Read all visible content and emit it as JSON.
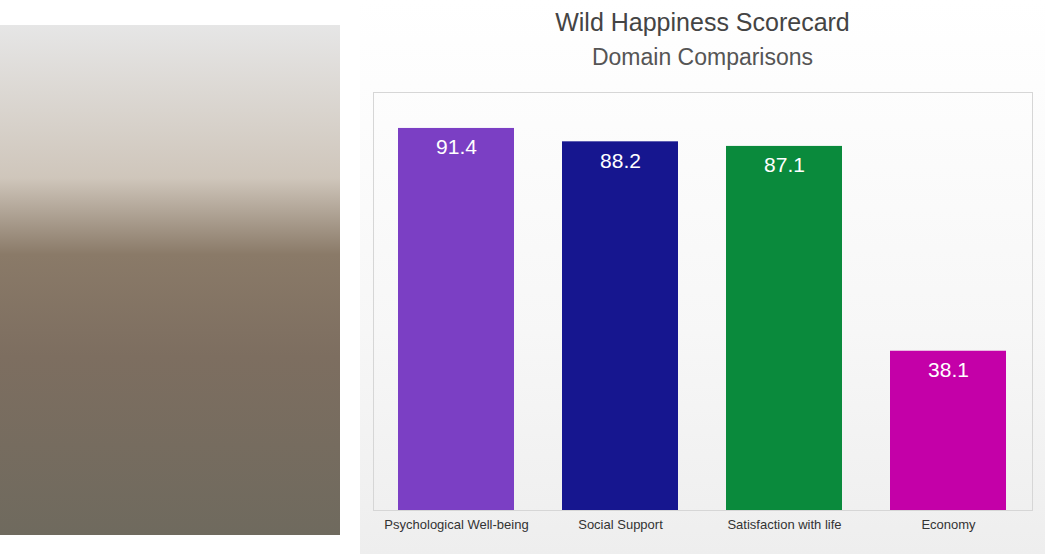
{
  "chart_data": {
    "type": "bar",
    "title": "Wild Happiness Scorecard",
    "subtitle": "Domain Comparisons",
    "categories": [
      "Psychological Well-being",
      "Social Support",
      "Satisfaction with life",
      "Economy"
    ],
    "values": [
      91.4,
      88.2,
      87.1,
      38.1
    ],
    "colors": [
      "#7b3fc4",
      "#16168f",
      "#0a8a3c",
      "#c400a8"
    ],
    "ylim": [
      0,
      100
    ],
    "tick_labels": "x",
    "data_labels": true,
    "grid": false
  }
}
